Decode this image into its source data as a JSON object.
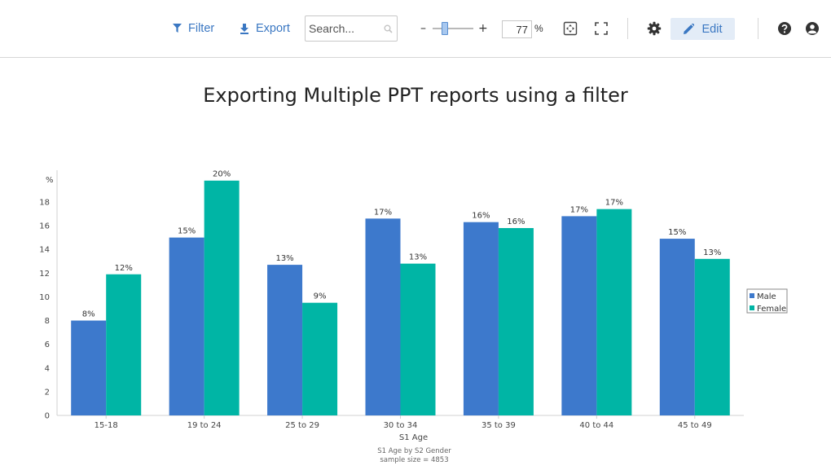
{
  "toolbar": {
    "filter_label": "Filter",
    "export_label": "Export",
    "search_placeholder": "Search...",
    "zoom_minus": "–",
    "zoom_plus": "+",
    "zoom_value": "77",
    "zoom_unit": "%",
    "zoom_slider_fraction": 0.25,
    "edit_label": "Edit",
    "accent_color": "#3a77c2"
  },
  "chart_data": {
    "type": "bar",
    "title": "Exporting Multiple PPT reports using a filter",
    "ylabel": "%",
    "xlabel": "S1 Age",
    "categories": [
      "15-18",
      "19 to 24",
      "25 to 29",
      "30 to 34",
      "35 to 39",
      "40 to 44",
      "45 to 49"
    ],
    "series": [
      {
        "name": "Male",
        "color": "#3d79cc",
        "values": [
          8.0,
          15.0,
          12.7,
          16.6,
          16.3,
          16.8,
          14.9
        ],
        "labels": [
          "8%",
          "15%",
          "13%",
          "17%",
          "16%",
          "17%",
          "15%"
        ]
      },
      {
        "name": "Female",
        "color": "#00b5a5",
        "values": [
          11.9,
          19.8,
          9.5,
          12.8,
          15.8,
          17.4,
          13.2
        ],
        "labels": [
          "12%",
          "20%",
          "9%",
          "13%",
          "16%",
          "17%",
          "13%"
        ]
      }
    ],
    "yticks": [
      0,
      2,
      4,
      6,
      8,
      10,
      12,
      14,
      16,
      18
    ],
    "ylim": [
      0,
      20.4
    ],
    "grid": false,
    "legend_position": "right",
    "notes": [
      "S1 Age by S2 Gender",
      "sample size = 4853"
    ]
  }
}
